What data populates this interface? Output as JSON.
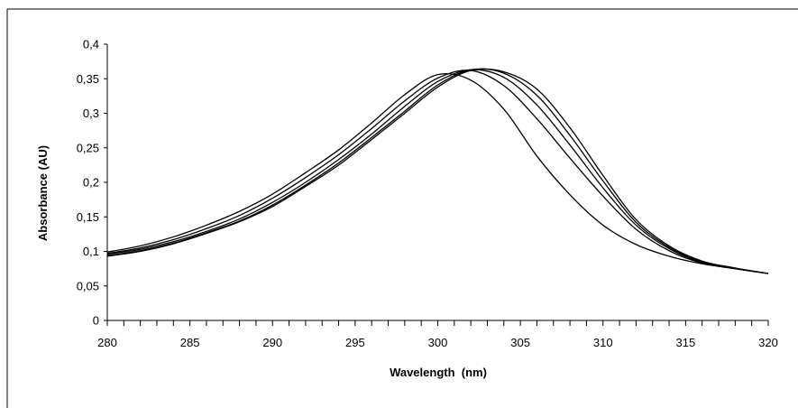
{
  "chart_data": {
    "type": "line",
    "title": "",
    "xlabel": "Wavelength  (nm)",
    "ylabel": "Absorbance  (AU)",
    "xlim": [
      280,
      320
    ],
    "ylim": [
      0,
      0.4
    ],
    "x_ticks": [
      "280",
      "285",
      "290",
      "295",
      "300",
      "305",
      "310",
      "315",
      "320"
    ],
    "y_ticks": [
      "0",
      "0,05",
      "0,1",
      "0,15",
      "0,2",
      "0,25",
      "0,3",
      "0,35",
      "0,4"
    ],
    "grid": false,
    "legend": "none",
    "line_color": "#000000",
    "x": [
      280,
      282,
      284,
      286,
      288,
      290,
      292,
      294,
      296,
      298,
      300,
      302,
      304,
      306,
      308,
      310,
      312,
      314,
      316,
      318,
      320
    ],
    "series": [
      {
        "values": [
          0.093,
          0.1,
          0.111,
          0.126,
          0.143,
          0.165,
          0.194,
          0.225,
          0.262,
          0.3,
          0.338,
          0.362,
          0.36,
          0.335,
          0.279,
          0.21,
          0.146,
          0.108,
          0.086,
          0.076,
          0.068
        ]
      },
      {
        "values": [
          0.094,
          0.101,
          0.112,
          0.127,
          0.144,
          0.167,
          0.196,
          0.228,
          0.265,
          0.303,
          0.341,
          0.363,
          0.358,
          0.326,
          0.268,
          0.202,
          0.142,
          0.106,
          0.085,
          0.075,
          0.068
        ]
      },
      {
        "values": [
          0.096,
          0.103,
          0.114,
          0.129,
          0.147,
          0.171,
          0.2,
          0.233,
          0.27,
          0.31,
          0.346,
          0.363,
          0.352,
          0.312,
          0.254,
          0.192,
          0.138,
          0.104,
          0.084,
          0.075,
          0.068
        ]
      },
      {
        "values": [
          0.097,
          0.105,
          0.117,
          0.133,
          0.152,
          0.177,
          0.207,
          0.24,
          0.278,
          0.318,
          0.351,
          0.362,
          0.34,
          0.292,
          0.235,
          0.18,
          0.132,
          0.101,
          0.083,
          0.075,
          0.068
        ]
      },
      {
        "values": [
          0.099,
          0.108,
          0.121,
          0.138,
          0.158,
          0.183,
          0.214,
          0.247,
          0.286,
          0.327,
          0.356,
          0.348,
          0.306,
          0.238,
          0.182,
          0.138,
          0.11,
          0.093,
          0.082,
          0.075,
          0.068
        ]
      }
    ]
  }
}
